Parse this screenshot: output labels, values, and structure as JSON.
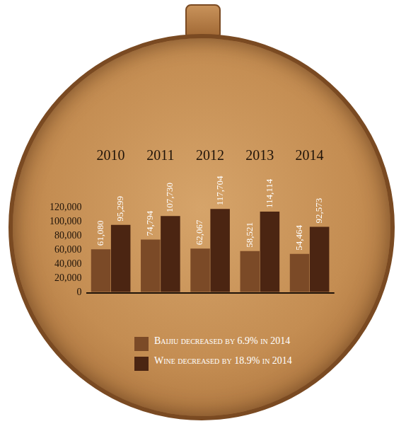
{
  "chart_data": {
    "type": "bar",
    "categories": [
      "2010",
      "2011",
      "2012",
      "2013",
      "2014"
    ],
    "series": [
      {
        "name": "Baijiu decreased by 6.9% in 2014",
        "color": "#7b4a27",
        "values": [
          61080,
          74794,
          62067,
          58521,
          54464
        ],
        "value_labels": [
          "61,080",
          "74,794",
          "62,067",
          "58,521",
          "54,464"
        ]
      },
      {
        "name": "Wine decreased by 18.9% in 2014",
        "color": "#4b2512",
        "values": [
          95299,
          107730,
          117704,
          114114,
          92573
        ],
        "value_labels": [
          "95,299",
          "107,730",
          "117,704",
          "114,114",
          "92,573"
        ]
      }
    ],
    "ylim": [
      0,
      120000
    ],
    "yticks": [
      0,
      {
        "value": 20000,
        "label": "20,000"
      },
      {
        "value": 40000,
        "label": "40,000"
      },
      {
        "value": 60000,
        "label": "60,000"
      },
      {
        "value": 80000,
        "label": "80,000"
      },
      {
        "value": 100000,
        "label": "100,000"
      },
      {
        "value": 120000,
        "label": "120,000"
      }
    ],
    "grid": false,
    "legend": "bottom",
    "data_labels": true
  }
}
